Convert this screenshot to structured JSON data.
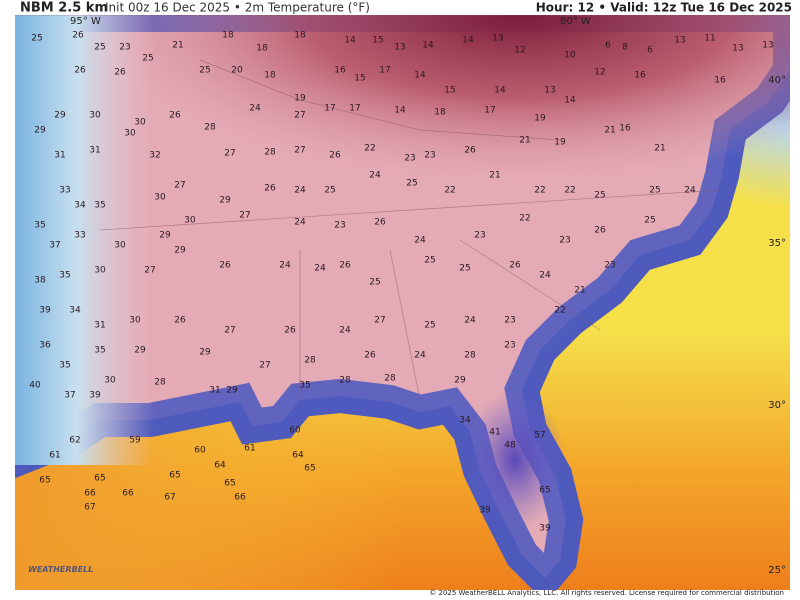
{
  "header": {
    "model": "NBM 2.5 km",
    "run": "Init 00z 16 Dec 2025 • 2m Temperature (°F)",
    "valid": "Hour: 12 • Valid: 12z Tue 16 Dec 2025"
  },
  "map_labels": {
    "lon_west": "95° W",
    "lon_east": "80° W",
    "lat_40": "40°",
    "lat_35": "35°",
    "lat_30": "30°",
    "lat_25": "25°"
  },
  "footer": {
    "logo": "WEATHERBELL",
    "copyright": "© 2025 WeatherBELL Analytics, LLC. All rights reserved. License required for commercial distribution"
  },
  "stations": [
    "25",
    "26",
    "25",
    "23",
    "25",
    "21",
    "18",
    "18",
    "18",
    "14",
    "15",
    "13",
    "14",
    "14",
    "13",
    "12",
    "10",
    "6",
    "8",
    "6",
    "13",
    "11",
    "13",
    "13",
    "26",
    "26",
    "25",
    "20",
    "18",
    "19",
    "16",
    "15",
    "17",
    "14",
    "15",
    "14",
    "13",
    "12",
    "16",
    "16",
    "29",
    "30",
    "30",
    "26",
    "28",
    "24",
    "27",
    "17",
    "17",
    "14",
    "18",
    "17",
    "19",
    "14",
    "16",
    "21",
    "29",
    "31",
    "31",
    "30",
    "32",
    "27",
    "28",
    "27",
    "26",
    "22",
    "23",
    "23",
    "26",
    "21",
    "19",
    "21",
    "33",
    "34",
    "35",
    "30",
    "27",
    "29",
    "26",
    "24",
    "25",
    "24",
    "25",
    "22",
    "21",
    "22",
    "22",
    "25",
    "25",
    "24",
    "35",
    "33",
    "30",
    "29",
    "30",
    "27",
    "24",
    "23",
    "26",
    "24",
    "23",
    "22",
    "23",
    "26",
    "25",
    "37",
    "38",
    "35",
    "30",
    "27",
    "29",
    "26",
    "24",
    "24",
    "26",
    "25",
    "25",
    "25",
    "26",
    "24",
    "21",
    "23",
    "39",
    "34",
    "31",
    "30",
    "26",
    "27",
    "26",
    "24",
    "27",
    "25",
    "24",
    "23",
    "22",
    "36",
    "35",
    "35",
    "29",
    "29",
    "27",
    "28",
    "26",
    "24",
    "28",
    "23",
    "40",
    "37",
    "39",
    "30",
    "28",
    "31",
    "29",
    "35",
    "28",
    "28",
    "29",
    "62",
    "61",
    "59",
    "60",
    "61",
    "60",
    "64",
    "64",
    "65",
    "65",
    "65",
    "65",
    "65",
    "66",
    "66",
    "67",
    "66",
    "67",
    "34",
    "41",
    "48",
    "57",
    "65",
    "39",
    "39"
  ]
}
